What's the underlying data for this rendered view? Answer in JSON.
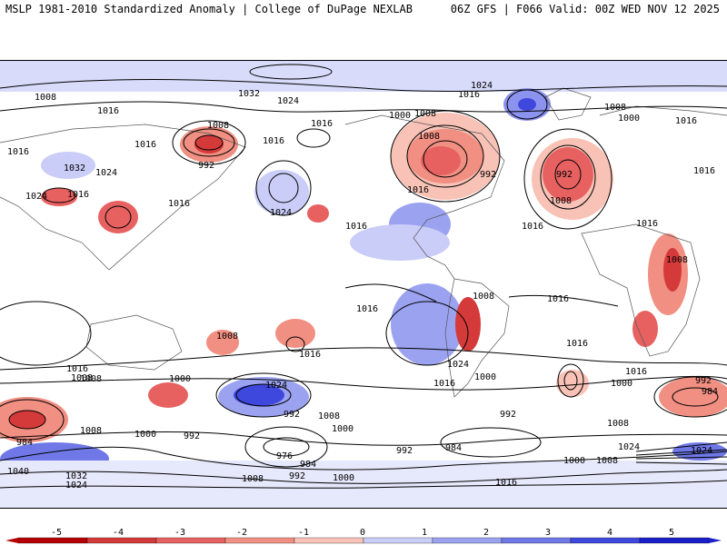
{
  "header": {
    "left": "MSLP 1981-2010 Standardized Anomaly | College of DuPage NEXLAB",
    "right": "06Z GFS | F066 Valid: 00Z WED NOV 12 2025"
  },
  "colorbar": {
    "ticks": [
      "-5",
      "-4",
      "-3",
      "-2",
      "-1",
      "0",
      "1",
      "2",
      "3",
      "4",
      "5"
    ],
    "colors": [
      "#b40000",
      "#d43a3a",
      "#e76161",
      "#f08f82",
      "#f8c2b6",
      "#ffffff",
      "#c9cdf7",
      "#9ba2f0",
      "#6f78e6",
      "#3f48dc",
      "#1a1fc8"
    ]
  },
  "isobar_labels": [
    "1008",
    "1016",
    "1016",
    "1032",
    "1024",
    "1016",
    "1024",
    "1008",
    "992",
    "1016",
    "1016",
    "1016",
    "1024",
    "1032",
    "1024",
    "1016",
    "1008",
    "1000",
    "1008",
    "992",
    "1016",
    "1024",
    "1016",
    "1008",
    "992",
    "1008",
    "1016",
    "1000",
    "1016",
    "1016",
    "1016",
    "1016",
    "1008",
    "1016",
    "1008",
    "1016",
    "1016",
    "1008",
    "1016",
    "1000",
    "1024",
    "1016",
    "992",
    "1008",
    "1000",
    "1024",
    "1008",
    "1016",
    "1000",
    "992",
    "984",
    "1008",
    "1000",
    "1024",
    "992",
    "984",
    "1008",
    "1000",
    "992",
    "1016",
    "1040",
    "1032",
    "1024",
    "976",
    "984",
    "1008",
    "992",
    "1000",
    "984",
    "992",
    "1008",
    "1016",
    "1000",
    "1008",
    "1024"
  ]
}
